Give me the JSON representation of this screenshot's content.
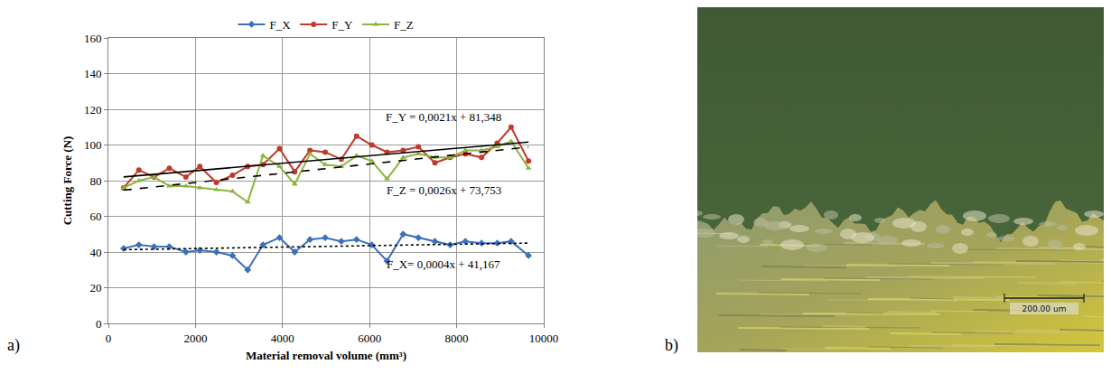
{
  "chart_data": {
    "type": "line",
    "panel_label": "a)",
    "x_label": "Material removal volume (mm³)",
    "y_label": "Cutting Force (N)",
    "x": [
      350,
      700,
      1050,
      1400,
      1780,
      2100,
      2480,
      2850,
      3200,
      3550,
      3930,
      4280,
      4630,
      4980,
      5350,
      5700,
      6050,
      6400,
      6770,
      7120,
      7500,
      7850,
      8200,
      8570,
      8930,
      9250,
      9650
    ],
    "series": [
      {
        "name": "F_X",
        "color": "#3c6fbe",
        "marker": "diamond",
        "line_style": "solid",
        "values": [
          42,
          44,
          43,
          43,
          40,
          41,
          40,
          38,
          30,
          44,
          48,
          40,
          47,
          48,
          46,
          47,
          44,
          35,
          50,
          48,
          46,
          44,
          46,
          45,
          45,
          46,
          38
        ]
      },
      {
        "name": "F_Y",
        "color": "#c0392b",
        "marker": "circle",
        "line_style": "solid",
        "values": [
          76,
          86,
          82,
          87,
          82,
          88,
          79,
          83,
          88,
          89,
          98,
          85,
          97,
          96,
          92,
          105,
          100,
          96,
          97,
          99,
          90,
          93,
          95,
          93,
          101,
          110,
          91
        ]
      },
      {
        "name": "F_Z",
        "color": "#8db43e",
        "marker": "triangle-up",
        "line_style": "solid",
        "values": [
          76,
          80,
          82,
          77,
          77,
          76,
          75,
          74,
          68,
          94,
          88,
          78,
          95,
          89,
          88,
          94,
          91,
          81,
          93,
          95,
          93,
          93,
          97,
          97,
          99,
          102,
          87
        ]
      }
    ],
    "trendlines": [
      {
        "equation": "F_Y = 0,0021x + 81,348",
        "slope": 0.0021,
        "intercept": 81.348,
        "x": [
          350,
          9650
        ],
        "color": "#000000",
        "line_style": "solid"
      },
      {
        "equation": "F_Z = 0,0026x + 73,753",
        "slope": 0.0026,
        "intercept": 73.753,
        "x": [
          350,
          9650
        ],
        "color": "#000000",
        "line_style": "dash"
      },
      {
        "equation": "F_X= 0,0004x + 41,167",
        "slope": 0.0004,
        "intercept": 41.167,
        "x": [
          350,
          9650
        ],
        "color": "#000000",
        "line_style": "dot"
      }
    ],
    "xlim": [
      0,
      10000
    ],
    "xticks": [
      0,
      2000,
      4000,
      6000,
      8000,
      10000
    ],
    "ylim": [
      0,
      160
    ],
    "yticks": [
      0,
      20,
      40,
      60,
      80,
      100,
      120,
      140,
      160
    ],
    "grid": true,
    "legend": "top"
  },
  "micrograph": {
    "panel_label": "b)",
    "scale_label": "200.00 um"
  }
}
